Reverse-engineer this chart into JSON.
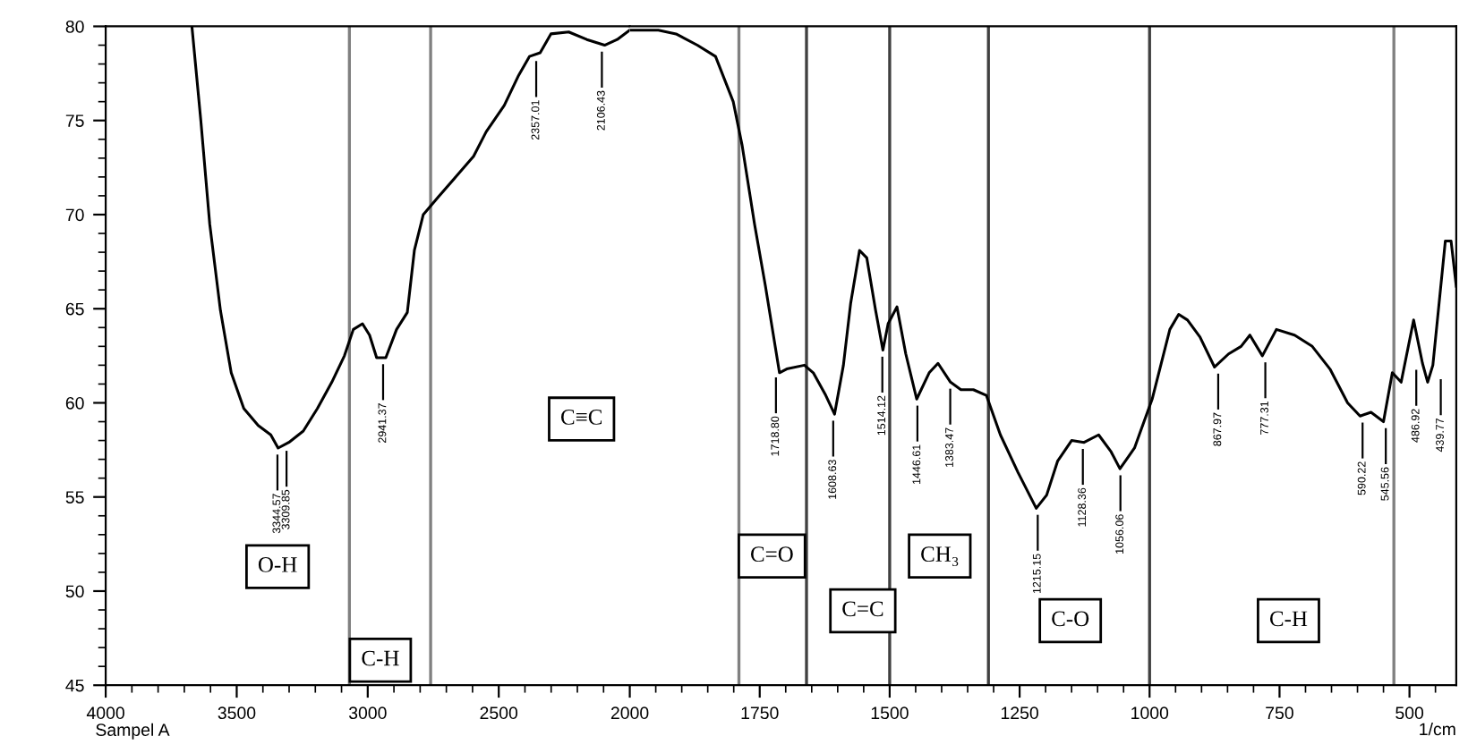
{
  "chart_data": [
    {
      "type": "line",
      "color": "#000000",
      "x": [
        3671,
        3637,
        3603,
        3562,
        3521,
        3473,
        3418,
        3370,
        3342,
        3301,
        3246,
        3192,
        3137,
        3089,
        3055,
        3020,
        2993,
        2966,
        2931,
        2890,
        2849,
        2822,
        2788,
        2733,
        2664,
        2596,
        2548,
        2479,
        2424,
        2383,
        2342,
        2301,
        2233,
        2164,
        2096,
        2048,
        2000
      ],
      "values": [
        80,
        75,
        69.5,
        64.9,
        61.6,
        59.7,
        58.8,
        58.3,
        57.6,
        57.9,
        58.5,
        59.7,
        61.1,
        62.5,
        63.9,
        64.2,
        63.6,
        62.4,
        62.4,
        63.9,
        64.8,
        68.1,
        70,
        70.9,
        72.0,
        73.1,
        74.4,
        75.8,
        77.4,
        78.4,
        78.6,
        79.6,
        79.7,
        79.3,
        79.0,
        79.3,
        79.8
      ],
      "xlim": [
        4000,
        2000
      ],
      "xticks": [
        4000,
        3500,
        3000,
        2500,
        2000
      ],
      "ylim": [
        45,
        80
      ],
      "yticks": [
        45,
        50,
        55,
        60,
        65,
        70,
        75,
        80
      ],
      "ref_lines": [
        {
          "axis": "x",
          "value": 3070,
          "color": "#808080"
        },
        {
          "axis": "x",
          "value": 2760,
          "color": "#808080"
        }
      ],
      "annotations": [
        "Sampel A",
        "O-H",
        "C-H",
        "C≡C",
        {
          "text": "3344.57",
          "x": 3344.57,
          "y": 57.6
        },
        {
          "text": "3309.85",
          "x": 3309.85,
          "y": 57.8
        },
        {
          "text": "2941.37",
          "x": 2941.37,
          "y": 62.4
        },
        {
          "text": "2357.01",
          "x": 2357.01,
          "y": 78.5
        },
        {
          "text": "2106.43",
          "x": 2106.43,
          "y": 79.0
        }
      ]
    },
    {
      "type": "line",
      "color": "#000000",
      "xlabel": "1/cm",
      "tick_labels": "x",
      "x": [
        2000,
        1945,
        1911,
        1870,
        1835,
        1818,
        1801,
        1784,
        1760,
        1739,
        1712,
        1698,
        1664,
        1647,
        1623,
        1606,
        1589,
        1575,
        1558,
        1544,
        1527,
        1513,
        1503,
        1486,
        1469,
        1448,
        1424,
        1407,
        1383,
        1363,
        1339,
        1314,
        1287,
        1253,
        1218,
        1198,
        1177,
        1150,
        1126,
        1098,
        1074,
        1057,
        1029,
        995,
        961,
        944,
        927,
        903,
        875,
        848,
        824,
        807,
        783,
        756,
        721,
        687,
        653,
        619,
        595,
        574,
        550,
        533,
        516,
        492,
        475,
        465,
        455,
        431,
        420,
        410
      ],
      "values": [
        79.8,
        79.8,
        79.6,
        79.0,
        78.4,
        77.2,
        76.0,
        73.7,
        69.5,
        66.2,
        61.6,
        61.8,
        62.0,
        61.6,
        60.4,
        59.4,
        62,
        65.3,
        68.1,
        67.7,
        64.9,
        62.8,
        64.2,
        65.1,
        62.6,
        60.2,
        61.6,
        62.1,
        61.1,
        60.7,
        60.7,
        60.4,
        58.3,
        56.3,
        54.4,
        55.1,
        56.9,
        58.0,
        57.9,
        58.3,
        57.4,
        56.5,
        57.6,
        60.2,
        63.9,
        64.7,
        64.4,
        63.5,
        61.9,
        62.6,
        63.0,
        63.6,
        62.5,
        63.9,
        63.6,
        63.0,
        61.8,
        60.0,
        59.3,
        59.5,
        59.0,
        61.6,
        61.1,
        64.4,
        62.1,
        61.1,
        62.0,
        68.6,
        68.6,
        66.2
      ],
      "xlim": [
        2000,
        410
      ],
      "xticks": [
        1750,
        1500,
        1250,
        1000,
        750,
        500
      ],
      "ylim": [
        45,
        80
      ],
      "yticks": [
        45,
        50,
        55,
        60,
        65,
        70,
        75,
        80
      ],
      "ref_lines": [
        {
          "axis": "x",
          "value": 1790,
          "color": "#808080"
        },
        {
          "axis": "x",
          "value": 1660,
          "color": "#404040"
        },
        {
          "axis": "x",
          "value": 1500,
          "color": "#404040"
        },
        {
          "axis": "x",
          "value": 1310,
          "color": "#404040"
        },
        {
          "axis": "x",
          "value": 1000,
          "color": "#404040"
        },
        {
          "axis": "x",
          "value": 530,
          "color": "#808080"
        }
      ],
      "annotations": [
        "C=O",
        "C=C",
        "CH₃",
        "C-O",
        "C-H",
        {
          "text": "1718.80",
          "x": 1718.8,
          "y": 61.7
        },
        {
          "text": "1608.63",
          "x": 1608.63,
          "y": 59.4
        },
        {
          "text": "1514.12",
          "x": 1514.12,
          "y": 62.8
        },
        {
          "text": "1446.61",
          "x": 1446.61,
          "y": 60.2
        },
        {
          "text": "1383.47",
          "x": 1383.47,
          "y": 61.1
        },
        {
          "text": "1215.15",
          "x": 1215.15,
          "y": 54.4
        },
        {
          "text": "1128.36",
          "x": 1128.36,
          "y": 57.9
        },
        {
          "text": "1056.06",
          "x": 1056.06,
          "y": 56.5
        },
        {
          "text": "867.97",
          "x": 867.97,
          "y": 61.9
        },
        {
          "text": "777.31",
          "x": 777.31,
          "y": 62.5
        },
        {
          "text": "590.22",
          "x": 590.22,
          "y": 59.3
        },
        {
          "text": "545.56",
          "x": 545.56,
          "y": 59.0
        },
        {
          "text": "486.92",
          "x": 486.92,
          "y": 62.1
        },
        {
          "text": "439.77",
          "x": 439.77,
          "y": 61.6
        }
      ]
    }
  ]
}
